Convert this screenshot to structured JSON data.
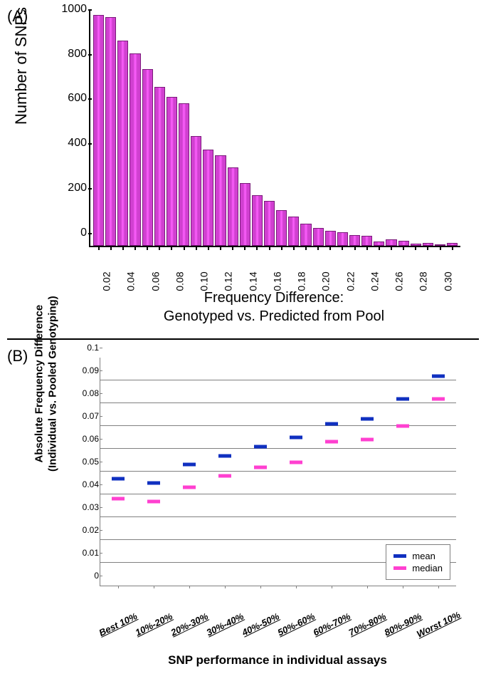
{
  "panelA": {
    "label": "(A)",
    "type": "bar",
    "y_axis_label": "Number of SNPs",
    "x_axis_label_line1": "Frequency Difference:",
    "x_axis_label_line2": "Genotyped vs. Predicted from Pool",
    "x_ticks": [
      "",
      "0.02",
      "",
      "0.04",
      "",
      "0.06",
      "",
      "0.08",
      "",
      "0.10",
      "",
      "0.12",
      "",
      "0.14",
      "",
      "0.16",
      "",
      "0.18",
      "",
      "0.20",
      "",
      "0.22",
      "",
      "0.24",
      "",
      "0.26",
      "",
      "0.28",
      "",
      "0.30"
    ],
    "y_ticks": [
      0,
      200,
      400,
      600,
      800,
      1000
    ],
    "y_max": 1050,
    "bar_values": [
      1030,
      1020,
      915,
      860,
      790,
      710,
      665,
      635,
      490,
      430,
      405,
      350,
      280,
      225,
      200,
      158,
      130,
      100,
      80,
      68,
      60,
      48,
      45,
      20,
      28,
      22,
      10,
      12,
      8,
      12
    ],
    "bar_color": "#d63cd6",
    "bar_border": "#7a1a7a",
    "axis_fontsize": 16,
    "label_fontsize": 20,
    "tick_fontsize": 14
  },
  "panelB": {
    "label": "(B)",
    "type": "scatter-dash",
    "y_axis_label_line1": "Absolute Frequency Difference",
    "y_axis_label_line2": "(Individual vs. Pooled Genotyping)",
    "x_axis_label": "SNP performance in individual assays",
    "x_categories": [
      "Best 10%",
      "10%-20%",
      "20%-30%",
      "30%-40%",
      "40%-50%",
      "50%-60%",
      "60%-70%",
      "70%-80%",
      "80%-90%",
      "Worst 10%"
    ],
    "y_ticks": [
      0,
      0.01,
      0.02,
      0.03,
      0.04,
      0.05,
      0.06,
      0.07,
      0.08,
      0.09,
      0.1
    ],
    "y_max": 0.1,
    "series": [
      {
        "name": "mean",
        "color": "#1030c0",
        "values": [
          0.047,
          0.045,
          0.053,
          0.057,
          0.061,
          0.065,
          0.071,
          0.073,
          0.082,
          0.092
        ]
      },
      {
        "name": "median",
        "color": "#ff40d0",
        "values": [
          0.038,
          0.037,
          0.043,
          0.048,
          0.052,
          0.054,
          0.063,
          0.064,
          0.07,
          0.082
        ]
      }
    ],
    "grid_color": "#808080",
    "legend_fontsize": 13,
    "tick_fontsize": 12,
    "label_fontsize": 15
  }
}
